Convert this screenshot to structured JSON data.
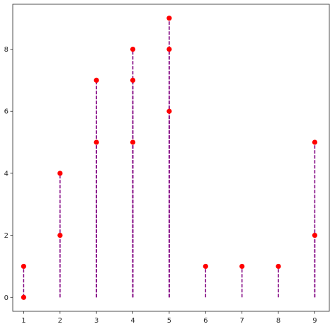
{
  "chart_data": {
    "type": "scatter",
    "title": "",
    "xlabel": "",
    "ylabel": "",
    "xlim": [
      0.7,
      9.4
    ],
    "ylim": [
      -0.45,
      9.45
    ],
    "xticks": [
      1,
      2,
      3,
      4,
      5,
      6,
      7,
      8,
      9
    ],
    "yticks": [
      0,
      2,
      4,
      6,
      8
    ],
    "grid": false,
    "legend": "none",
    "stem_baseline": 0,
    "colors": {
      "marker": "#ff0000",
      "stem": "#800080",
      "frame": "#262626"
    },
    "points": [
      {
        "x": 1,
        "y": 0
      },
      {
        "x": 1,
        "y": 1
      },
      {
        "x": 2,
        "y": 2
      },
      {
        "x": 2,
        "y": 4
      },
      {
        "x": 3,
        "y": 5
      },
      {
        "x": 3,
        "y": 7
      },
      {
        "x": 4,
        "y": 5
      },
      {
        "x": 4,
        "y": 7
      },
      {
        "x": 4,
        "y": 8
      },
      {
        "x": 5,
        "y": 6
      },
      {
        "x": 5,
        "y": 8
      },
      {
        "x": 5,
        "y": 9
      },
      {
        "x": 6,
        "y": 1
      },
      {
        "x": 7,
        "y": 1
      },
      {
        "x": 8,
        "y": 1
      },
      {
        "x": 9,
        "y": 2
      },
      {
        "x": 9,
        "y": 5
      }
    ]
  }
}
